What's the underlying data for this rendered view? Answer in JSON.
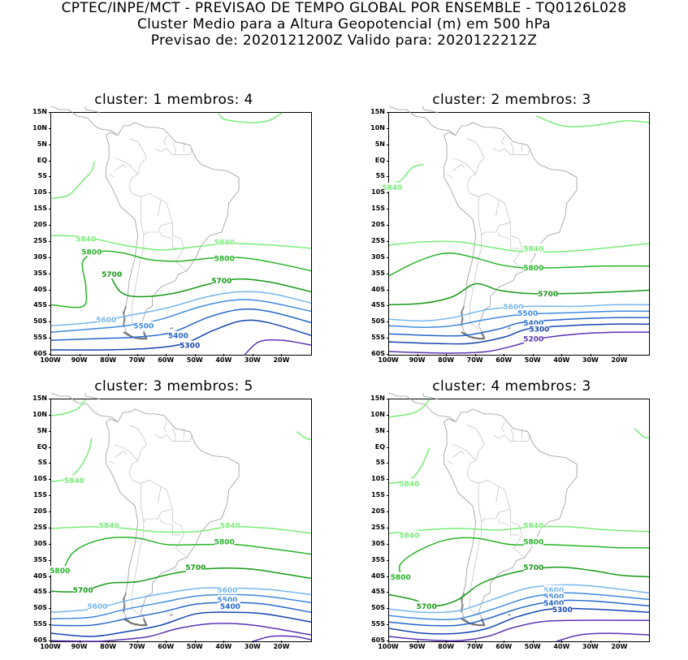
{
  "header": {
    "line1": "CPTEC/INPE/MCT - PREVISAO DE TEMPO GLOBAL POR ENSEMBLE - TQ0126L028",
    "line2": "Cluster Medio para a Altura Geopotencial (m) em 500 hPa",
    "line3": "Previsao de: 2020121200Z   Valido para: 2020122212Z"
  },
  "map": {
    "lon_range": [
      -100,
      -10
    ],
    "lat_range": [
      -60,
      15
    ],
    "lat_ticks": [
      "15N",
      "10N",
      "5N",
      "EQ",
      "5S",
      "10S",
      "15S",
      "20S",
      "25S",
      "30S",
      "35S",
      "40S",
      "45S",
      "50S",
      "55S",
      "60S"
    ],
    "lon_ticks": [
      "100W",
      "90W",
      "80W",
      "70W",
      "60W",
      "50W",
      "40W",
      "30W",
      "20W"
    ]
  },
  "colors": {
    "c5840": "#79ec79",
    "c5800": "#27b427",
    "c5700": "#169a16",
    "c5600": "#76b7ef",
    "c5500": "#3f8be0",
    "c5400": "#2467cc",
    "c5300": "#1546b0",
    "c5200": "#5a34b4",
    "coast": "#9a9a9a"
  },
  "panels": [
    {
      "title": "cluster: 1   membros: 4",
      "labels": [
        {
          "text": "5840",
          "lon": -88,
          "lat": -24
        },
        {
          "text": "5840",
          "lon": -40,
          "lat": -25
        },
        {
          "text": "5800",
          "lon": -86,
          "lat": -28
        },
        {
          "text": "5800",
          "lon": -40,
          "lat": -30
        },
        {
          "text": "5700",
          "lon": -79,
          "lat": -35
        },
        {
          "text": "5700",
          "lon": -41,
          "lat": -37
        },
        {
          "text": "5600",
          "lon": -81,
          "lat": -49
        },
        {
          "text": "5500",
          "lon": -68,
          "lat": -51
        },
        {
          "text": "5400",
          "lon": -56,
          "lat": -54
        },
        {
          "text": "5300",
          "lon": -52,
          "lat": -57
        }
      ]
    },
    {
      "title": "cluster: 2   membros: 3",
      "labels": [
        {
          "text": "5840",
          "lon": -99,
          "lat": -8
        },
        {
          "text": "5840",
          "lon": -50,
          "lat": -27
        },
        {
          "text": "5800",
          "lon": -50,
          "lat": -33
        },
        {
          "text": "5700",
          "lon": -45,
          "lat": -41
        },
        {
          "text": "5600",
          "lon": -57,
          "lat": -45
        },
        {
          "text": "5500",
          "lon": -52,
          "lat": -47
        },
        {
          "text": "5400",
          "lon": -50,
          "lat": -50
        },
        {
          "text": "5300",
          "lon": -48,
          "lat": -52
        },
        {
          "text": "5200",
          "lon": -50,
          "lat": -55
        }
      ]
    },
    {
      "title": "cluster: 3   membros: 5",
      "labels": [
        {
          "text": "5840",
          "lon": -92,
          "lat": -10
        },
        {
          "text": "5840",
          "lon": -80,
          "lat": -24
        },
        {
          "text": "5840",
          "lon": -38,
          "lat": -24
        },
        {
          "text": "5800",
          "lon": -97,
          "lat": -38
        },
        {
          "text": "5800",
          "lon": -40,
          "lat": -29
        },
        {
          "text": "5700",
          "lon": -89,
          "lat": -44
        },
        {
          "text": "5700",
          "lon": -50,
          "lat": -37
        },
        {
          "text": "5600",
          "lon": -84,
          "lat": -49
        },
        {
          "text": "5600",
          "lon": -39,
          "lat": -44
        },
        {
          "text": "5500",
          "lon": -39,
          "lat": -47
        },
        {
          "text": "5400",
          "lon": -38,
          "lat": -49
        }
      ]
    },
    {
      "title": "cluster: 4   membros: 3",
      "labels": [
        {
          "text": "5840",
          "lon": -93,
          "lat": -11
        },
        {
          "text": "5840",
          "lon": -93,
          "lat": -27
        },
        {
          "text": "5840",
          "lon": -50,
          "lat": -24
        },
        {
          "text": "5800",
          "lon": -96,
          "lat": -40
        },
        {
          "text": "5800",
          "lon": -50,
          "lat": -29
        },
        {
          "text": "5700",
          "lon": -87,
          "lat": -49
        },
        {
          "text": "5700",
          "lon": -50,
          "lat": -37
        },
        {
          "text": "5600",
          "lon": -43,
          "lat": -44
        },
        {
          "text": "5500",
          "lon": -43,
          "lat": -46
        },
        {
          "text": "5400",
          "lon": -43,
          "lat": -48
        },
        {
          "text": "5300",
          "lon": -40,
          "lat": -50
        }
      ]
    }
  ]
}
